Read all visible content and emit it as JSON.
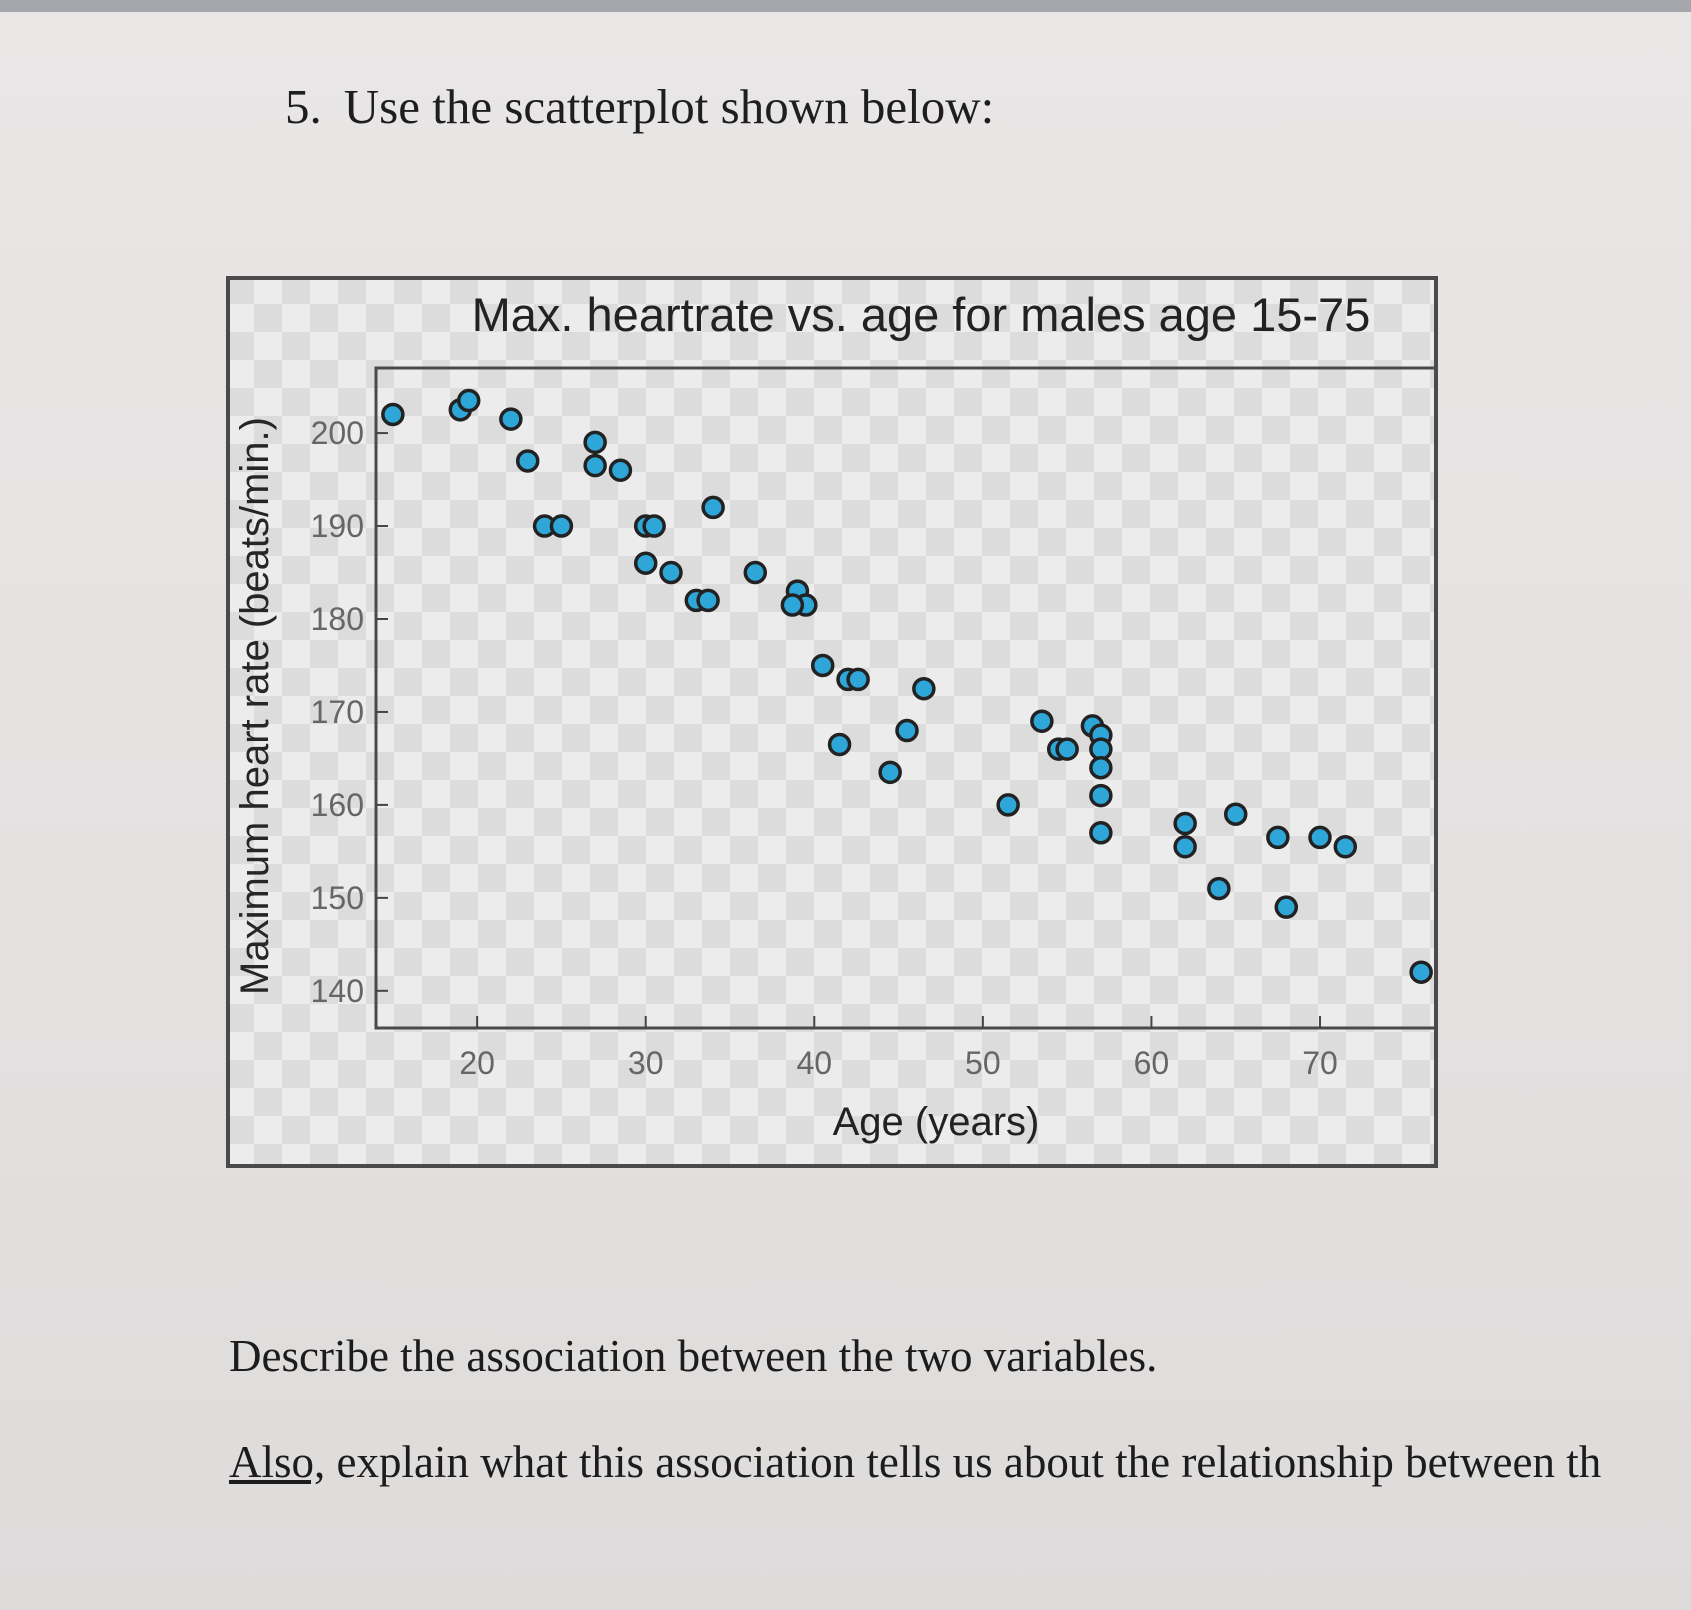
{
  "question": {
    "number": "5.",
    "text": "Use the scatterplot shown below:"
  },
  "prompts": {
    "describe": "Describe the association between the two variables.",
    "also_word": "Also,",
    "explain_rest": " explain what this association tells us about the relationship between th"
  },
  "colors": {
    "point_fill": "#2fa6d8",
    "point_stroke": "#222222",
    "frame": "#4a4a4a"
  },
  "chart_data": {
    "type": "scatter",
    "title": "Max. heartrate vs. age for males age 15-75",
    "xlabel": "Age (years)",
    "ylabel": "Maximum heart rate (beats/min.)",
    "xlim": [
      14,
      77
    ],
    "ylim": [
      136,
      207
    ],
    "xticks": [
      20,
      30,
      40,
      50,
      60,
      70
    ],
    "yticks": [
      140,
      150,
      160,
      170,
      180,
      190,
      200
    ],
    "grid": false,
    "legend": "none",
    "points": [
      {
        "x": 15,
        "y": 202
      },
      {
        "x": 19,
        "y": 202.5
      },
      {
        "x": 19.5,
        "y": 203.5
      },
      {
        "x": 22,
        "y": 201.5
      },
      {
        "x": 23,
        "y": 197
      },
      {
        "x": 24,
        "y": 190
      },
      {
        "x": 25,
        "y": 190
      },
      {
        "x": 27,
        "y": 199
      },
      {
        "x": 27,
        "y": 196.5
      },
      {
        "x": 28.5,
        "y": 196
      },
      {
        "x": 30,
        "y": 190
      },
      {
        "x": 30.5,
        "y": 190
      },
      {
        "x": 30,
        "y": 186
      },
      {
        "x": 31.5,
        "y": 185
      },
      {
        "x": 34,
        "y": 192
      },
      {
        "x": 33,
        "y": 182
      },
      {
        "x": 33.7,
        "y": 182
      },
      {
        "x": 36.5,
        "y": 185
      },
      {
        "x": 39,
        "y": 183
      },
      {
        "x": 39.5,
        "y": 181.5
      },
      {
        "x": 38.7,
        "y": 181.5
      },
      {
        "x": 40.5,
        "y": 175
      },
      {
        "x": 42,
        "y": 173.5
      },
      {
        "x": 42.6,
        "y": 173.5
      },
      {
        "x": 46.5,
        "y": 172.5
      },
      {
        "x": 41.5,
        "y": 166.5
      },
      {
        "x": 45.5,
        "y": 168
      },
      {
        "x": 44.5,
        "y": 163.5
      },
      {
        "x": 51.5,
        "y": 160
      },
      {
        "x": 53.5,
        "y": 169
      },
      {
        "x": 54.5,
        "y": 166
      },
      {
        "x": 55,
        "y": 166
      },
      {
        "x": 56.5,
        "y": 168.5
      },
      {
        "x": 57,
        "y": 167.5
      },
      {
        "x": 57,
        "y": 166
      },
      {
        "x": 57,
        "y": 164
      },
      {
        "x": 57,
        "y": 161
      },
      {
        "x": 57,
        "y": 157
      },
      {
        "x": 62,
        "y": 158
      },
      {
        "x": 62,
        "y": 155.5
      },
      {
        "x": 64,
        "y": 151
      },
      {
        "x": 65,
        "y": 159
      },
      {
        "x": 67.5,
        "y": 156.5
      },
      {
        "x": 68,
        "y": 149
      },
      {
        "x": 70,
        "y": 156.5
      },
      {
        "x": 71.5,
        "y": 155.5
      },
      {
        "x": 76,
        "y": 142
      }
    ]
  }
}
